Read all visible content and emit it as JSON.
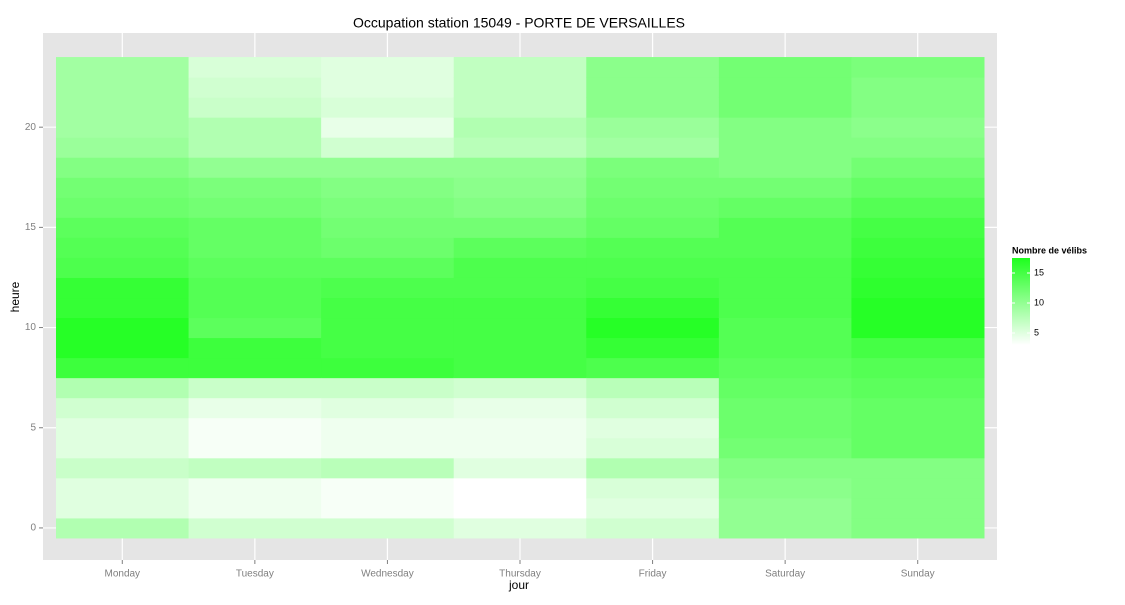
{
  "chart_data": {
    "type": "heatmap",
    "title": "Occupation station 15049 - PORTE DE VERSAILLES",
    "xlabel": "jour",
    "ylabel": "heure",
    "categories": [
      "Monday",
      "Tuesday",
      "Wednesday",
      "Thursday",
      "Friday",
      "Saturday",
      "Sunday"
    ],
    "y": [
      0,
      1,
      2,
      3,
      4,
      5,
      6,
      7,
      8,
      9,
      10,
      11,
      12,
      13,
      14,
      15,
      16,
      17,
      18,
      19,
      20,
      21,
      22,
      23
    ],
    "values": [
      [
        8,
        5,
        5,
        6.5,
        5,
        5,
        6,
        8,
        15.5,
        17,
        17,
        16,
        16,
        14.5,
        14,
        13.5,
        12.5,
        12,
        11,
        9.5,
        9,
        9,
        9,
        9
      ],
      [
        6,
        4,
        4,
        7,
        3.5,
        3.5,
        4.5,
        6.5,
        15.5,
        15.5,
        13.5,
        14,
        14,
        13.5,
        13,
        13,
        12,
        11.5,
        10,
        8,
        8,
        6.5,
        6,
        5.5
      ],
      [
        6,
        3.5,
        3.5,
        7.5,
        4,
        4,
        5,
        6.5,
        15.5,
        15,
        15,
        15,
        14.5,
        13.5,
        12.5,
        12,
        11.5,
        11,
        10,
        6,
        4.5,
        5.5,
        5,
        5
      ],
      [
        5,
        3,
        3,
        5,
        4,
        4,
        4.5,
        6,
        15,
        15,
        15,
        15,
        14.5,
        14.5,
        13.5,
        12,
        11,
        10.5,
        10,
        7.5,
        8,
        7,
        7,
        7
      ],
      [
        6,
        5,
        5.5,
        8,
        5.5,
        5,
        6,
        7.5,
        14.5,
        16,
        17,
        16,
        15,
        14.5,
        14,
        13,
        12.5,
        12,
        11.5,
        9,
        9.5,
        10.5,
        10.5,
        10.5
      ],
      [
        10,
        10,
        10.5,
        11,
        12,
        12.5,
        12.5,
        13,
        13.5,
        14,
        14,
        14.5,
        14.5,
        14.5,
        14,
        14,
        13,
        12,
        11,
        11,
        11,
        12,
        12,
        12
      ],
      [
        11,
        11,
        11,
        11,
        13,
        13,
        13,
        13.5,
        14,
        15,
        17,
        17,
        16.5,
        16,
        15.5,
        15,
        14,
        13,
        12,
        11,
        10.5,
        11,
        11,
        11.5
      ]
    ],
    "ylim": [
      -1.6,
      24.7
    ],
    "yticks": [
      0,
      5,
      10,
      15,
      20
    ],
    "grid": true,
    "legend_title": "Nombre de vélibs",
    "colors": [
      "#ffffff",
      "#1eff1e"
    ],
    "clim": [
      3,
      17.5
    ],
    "legend_ticks": [
      5,
      10,
      15
    ]
  }
}
